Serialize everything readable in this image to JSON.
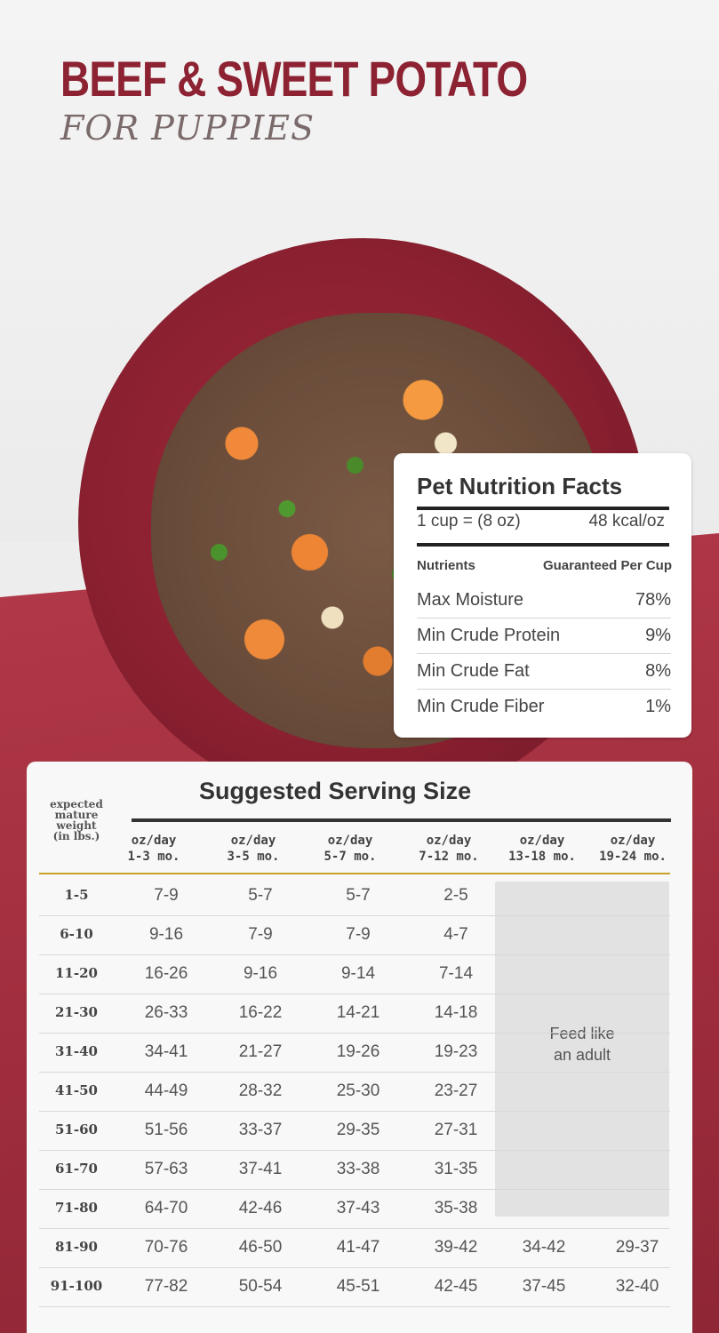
{
  "header": {
    "title": "BEEF & SWEET POTATO",
    "subtitle": "FOR PUPPIES"
  },
  "nutrition_facts": {
    "title": "Pet Nutrition Facts",
    "serving": "1 cup = (8 oz)",
    "calories": "48 kcal/oz",
    "header_left": "Nutrients",
    "header_right": "Guaranteed Per Cup",
    "rows": [
      {
        "name": "Max Moisture",
        "value": "78%"
      },
      {
        "name": "Min Crude Protein",
        "value": "9%"
      },
      {
        "name": "Min Crude Fat",
        "value": "8%"
      },
      {
        "name": "Min Crude Fiber",
        "value": "1%"
      }
    ]
  },
  "serving_size": {
    "title": "Suggested Serving Size",
    "weight_header": [
      "expected",
      "mature",
      "weight",
      "(in lbs.)"
    ],
    "columns": [
      {
        "line1": "oz/day",
        "line2": "1-3 mo."
      },
      {
        "line1": "oz/day",
        "line2": "3-5 mo."
      },
      {
        "line1": "oz/day",
        "line2": "5-7 mo."
      },
      {
        "line1": "oz/day",
        "line2": "7-12 mo."
      },
      {
        "line1": "oz/day",
        "line2": "13-18 mo."
      },
      {
        "line1": "oz/day",
        "line2": "19-24 mo."
      }
    ],
    "feed_note": [
      "Feed like",
      "an adult"
    ],
    "rows": [
      {
        "weight": "1-5",
        "values": [
          "7-9",
          "5-7",
          "5-7",
          "2-5",
          "",
          ""
        ]
      },
      {
        "weight": "6-10",
        "values": [
          "9-16",
          "7-9",
          "7-9",
          "4-7",
          "",
          ""
        ]
      },
      {
        "weight": "11-20",
        "values": [
          "16-26",
          "9-16",
          "9-14",
          "7-14",
          "",
          ""
        ]
      },
      {
        "weight": "21-30",
        "values": [
          "26-33",
          "16-22",
          "14-21",
          "14-18",
          "",
          ""
        ]
      },
      {
        "weight": "31-40",
        "values": [
          "34-41",
          "21-27",
          "19-26",
          "19-23",
          "",
          ""
        ]
      },
      {
        "weight": "41-50",
        "values": [
          "44-49",
          "28-32",
          "25-30",
          "23-27",
          "",
          ""
        ]
      },
      {
        "weight": "51-60",
        "values": [
          "51-56",
          "33-37",
          "29-35",
          "27-31",
          "",
          ""
        ]
      },
      {
        "weight": "61-70",
        "values": [
          "57-63",
          "37-41",
          "33-38",
          "31-35",
          "",
          ""
        ]
      },
      {
        "weight": "71-80",
        "values": [
          "64-70",
          "42-46",
          "37-43",
          "35-38",
          "",
          ""
        ]
      },
      {
        "weight": "81-90",
        "values": [
          "70-76",
          "46-50",
          "41-47",
          "39-42",
          "34-42",
          "29-37"
        ]
      },
      {
        "weight": "91-100",
        "values": [
          "77-82",
          "50-54",
          "45-51",
          "42-45",
          "37-45",
          "32-40"
        ]
      }
    ]
  },
  "colors": {
    "brand_red": "#8c2232",
    "background_red": "#a8303f",
    "gold_rule": "#c9a227"
  }
}
